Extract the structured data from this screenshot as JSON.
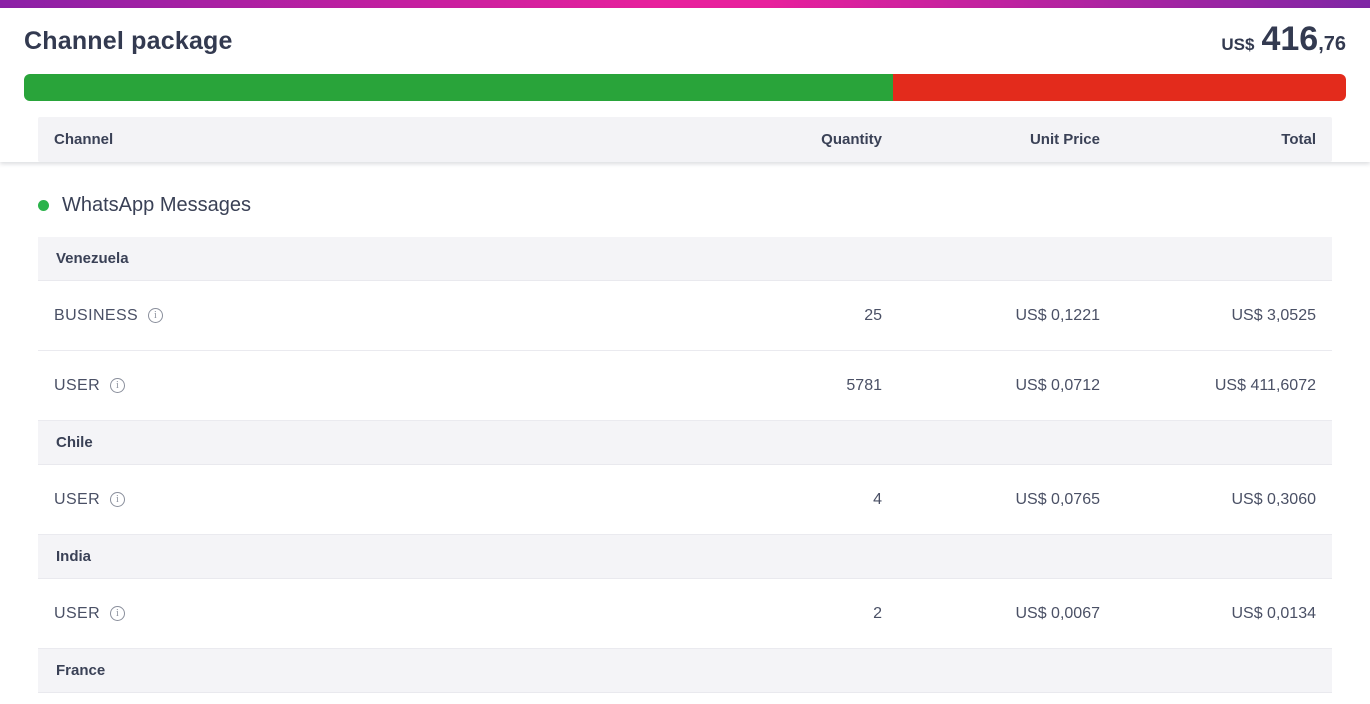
{
  "colors": {
    "accent-gradient-left": "#8b21a6",
    "accent-gradient-mid": "#e8209c",
    "accent-gradient-right": "#7f27a5",
    "progress-green": "#29a43a",
    "progress-red": "#e32b1c",
    "dot-green": "#2bb34b"
  },
  "header": {
    "title": "Channel package",
    "price_currency": "US$",
    "price_int": "416",
    "price_dec": ",76"
  },
  "progress": {
    "used_pct": 65.7
  },
  "table": {
    "columns": [
      "Channel",
      "Quantity",
      "Unit Price",
      "Total"
    ]
  },
  "icons": {
    "info": "i"
  },
  "section": {
    "title": "WhatsApp Messages",
    "groups": [
      {
        "country": "Venezuela",
        "rows": [
          {
            "label": "BUSINESS",
            "quantity": "25",
            "unit_price": "US$ 0,1221",
            "total": "US$ 3,0525"
          },
          {
            "label": "USER",
            "quantity": "5781",
            "unit_price": "US$ 0,0712",
            "total": "US$ 411,6072"
          }
        ]
      },
      {
        "country": "Chile",
        "rows": [
          {
            "label": "USER",
            "quantity": "4",
            "unit_price": "US$ 0,0765",
            "total": "US$ 0,3060"
          }
        ]
      },
      {
        "country": "India",
        "rows": [
          {
            "label": "USER",
            "quantity": "2",
            "unit_price": "US$ 0,0067",
            "total": "US$ 0,0134"
          }
        ]
      },
      {
        "country": "France",
        "rows": []
      }
    ]
  }
}
